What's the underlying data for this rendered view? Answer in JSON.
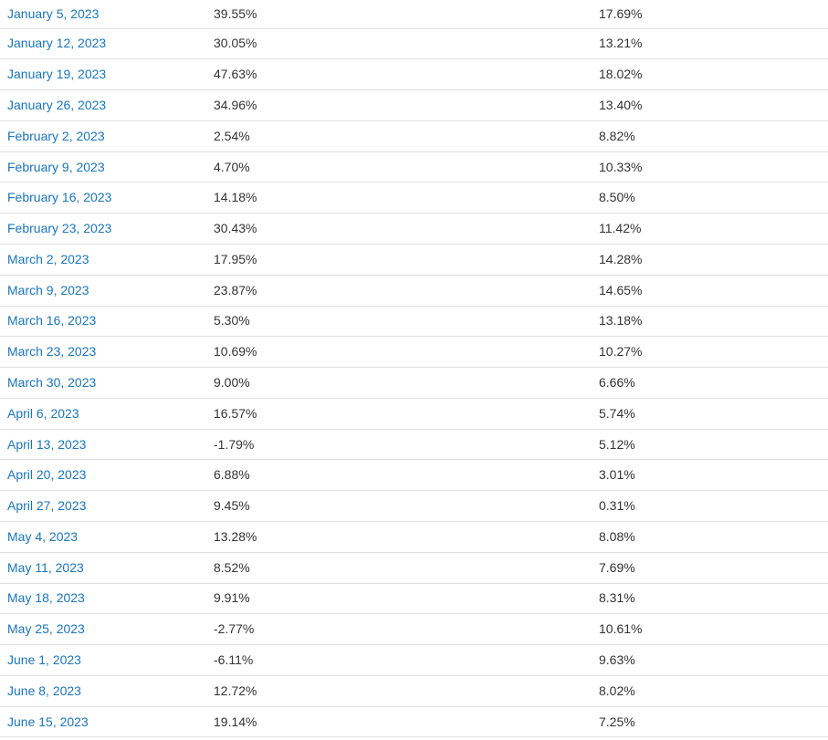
{
  "table": {
    "description": "Weekly dated rows with two percentage value columns",
    "colors": {
      "link_blue": "#1b75bb",
      "value_text": "#333333",
      "row_border": "#e0e0e0",
      "background": "#ffffff"
    },
    "rows": [
      {
        "date": "January 5, 2023",
        "value1": "39.55%",
        "value2": "17.69%"
      },
      {
        "date": "January 12, 2023",
        "value1": "30.05%",
        "value2": "13.21%"
      },
      {
        "date": "January 19, 2023",
        "value1": "47.63%",
        "value2": "18.02%"
      },
      {
        "date": "January 26, 2023",
        "value1": "34.96%",
        "value2": "13.40%"
      },
      {
        "date": "February 2, 2023",
        "value1": "2.54%",
        "value2": "8.82%"
      },
      {
        "date": "February 9, 2023",
        "value1": "4.70%",
        "value2": "10.33%"
      },
      {
        "date": "February 16, 2023",
        "value1": "14.18%",
        "value2": "8.50%"
      },
      {
        "date": "February 23, 2023",
        "value1": "30.43%",
        "value2": "11.42%"
      },
      {
        "date": "March 2, 2023",
        "value1": "17.95%",
        "value2": "14.28%"
      },
      {
        "date": "March 9, 2023",
        "value1": "23.87%",
        "value2": "14.65%"
      },
      {
        "date": "March 16, 2023",
        "value1": "5.30%",
        "value2": "13.18%"
      },
      {
        "date": "March 23, 2023",
        "value1": "10.69%",
        "value2": "10.27%"
      },
      {
        "date": "March 30, 2023",
        "value1": "9.00%",
        "value2": "6.66%"
      },
      {
        "date": "April 6, 2023",
        "value1": "16.57%",
        "value2": "5.74%"
      },
      {
        "date": "April 13, 2023",
        "value1": "-1.79%",
        "value2": "5.12%"
      },
      {
        "date": "April 20, 2023",
        "value1": "6.88%",
        "value2": "3.01%"
      },
      {
        "date": "April 27, 2023",
        "value1": "9.45%",
        "value2": "0.31%"
      },
      {
        "date": "May 4, 2023",
        "value1": "13.28%",
        "value2": "8.08%"
      },
      {
        "date": "May 11, 2023",
        "value1": "8.52%",
        "value2": "7.69%"
      },
      {
        "date": "May 18, 2023",
        "value1": "9.91%",
        "value2": "8.31%"
      },
      {
        "date": "May 25, 2023",
        "value1": "-2.77%",
        "value2": "10.61%"
      },
      {
        "date": "June 1, 2023",
        "value1": "-6.11%",
        "value2": "9.63%"
      },
      {
        "date": "June 8, 2023",
        "value1": "12.72%",
        "value2": "8.02%"
      },
      {
        "date": "June 15, 2023",
        "value1": "19.14%",
        "value2": "7.25%"
      }
    ]
  }
}
